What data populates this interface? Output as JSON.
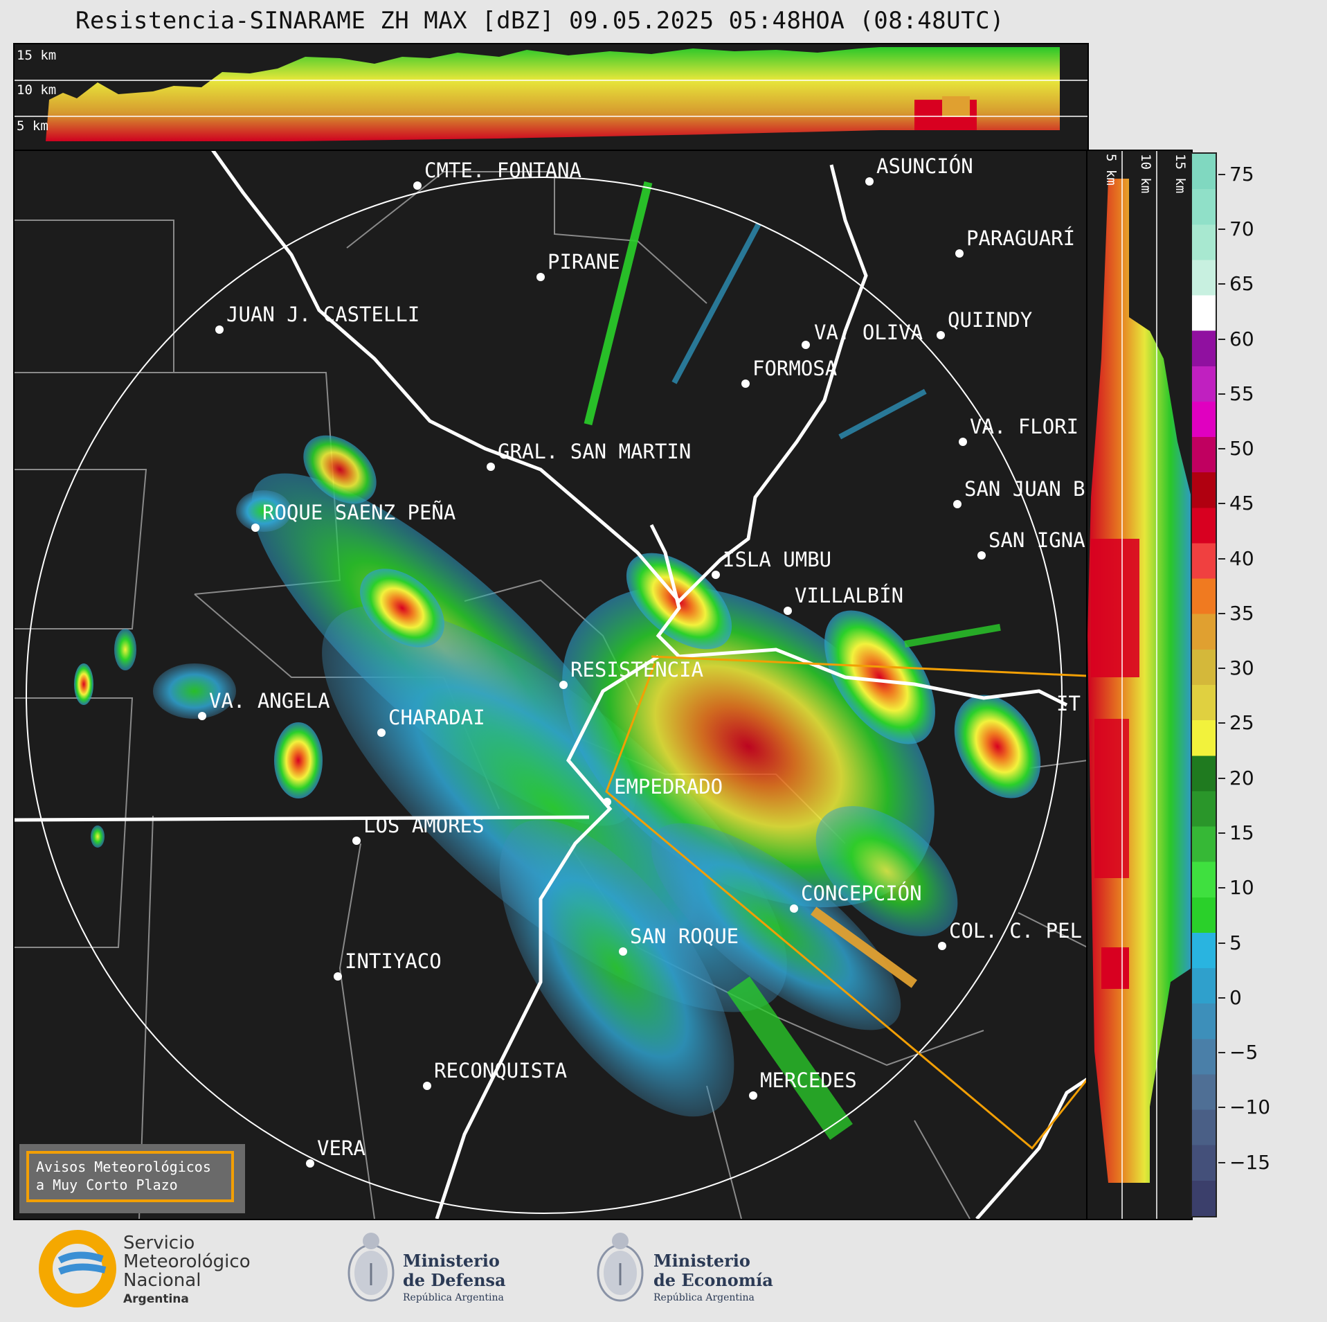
{
  "title": "Resistencia-SINARAME ZH MAX [dBZ] 09.05.2025 05:48HOA (08:48UTC)",
  "height_labels": [
    "15 km",
    "10 km",
    "5 km"
  ],
  "side_height_labels": [
    "5 km",
    "10 km",
    "15 km"
  ],
  "colorbar": {
    "unit": "dBZ",
    "ticks": [
      "75",
      "70",
      "65",
      "60",
      "55",
      "50",
      "45",
      "40",
      "35",
      "30",
      "25",
      "20",
      "15",
      "10",
      "5",
      "0",
      "−5",
      "−10",
      "−15"
    ],
    "colors": [
      "#3b3f6b",
      "#44507a",
      "#4a5f86",
      "#4f6f95",
      "#4a7fa8",
      "#3d8fba",
      "#2fa0cc",
      "#29b4e0",
      "#2ad02a",
      "#3fe03f",
      "#36b836",
      "#2a962a",
      "#1f7a1f",
      "#f2f23c",
      "#e0d040",
      "#d4b83a",
      "#e0a030",
      "#f07a20",
      "#f04040",
      "#d80020",
      "#b00010",
      "#c00060",
      "#e000c0",
      "#c020c0",
      "#9010a0",
      "#ffffff",
      "#c8f0e0",
      "#a8e8d0",
      "#90e0c8",
      "#80d8c0"
    ],
    "range": [
      -20,
      77
    ]
  },
  "cities": [
    {
      "name": "CMTE. FONTANA"
    },
    {
      "name": "ASUNCIÓN"
    },
    {
      "name": "PARAGUARÍ"
    },
    {
      "name": "PIRANE"
    },
    {
      "name": "JUAN J. CASTELLI"
    },
    {
      "name": "VA. OLIVA"
    },
    {
      "name": "QUIINDY"
    },
    {
      "name": "FORMOSA"
    },
    {
      "name": "VA. FLORI"
    },
    {
      "name": "GRAL. SAN MARTIN"
    },
    {
      "name": "SAN JUAN B"
    },
    {
      "name": "ROQUE SAENZ PEÑA"
    },
    {
      "name": "SAN IGNA"
    },
    {
      "name": "ISLA UMBU"
    },
    {
      "name": "VILLALBÍN"
    },
    {
      "name": "RESISTENCIA"
    },
    {
      "name": "VA. ANGELA"
    },
    {
      "name": "CHARADAI"
    },
    {
      "name": "IT"
    },
    {
      "name": "EMPEDRADO"
    },
    {
      "name": "LOS AMORES"
    },
    {
      "name": "CONCEPCIÓN"
    },
    {
      "name": "COL. C. PEL"
    },
    {
      "name": "SAN ROQUE"
    },
    {
      "name": "INTIYACO"
    },
    {
      "name": "RECONQUISTA"
    },
    {
      "name": "MERCEDES"
    },
    {
      "name": "VERA"
    }
  ],
  "warning": {
    "line1": "Avisos Meteorológicos",
    "line2": "a Muy Corto Plazo"
  },
  "footer": {
    "smn": {
      "line1": "Servicio",
      "line2": "Meteorológico",
      "line3": "Nacional",
      "line4": "Argentina"
    },
    "defensa": {
      "line1": "Ministerio",
      "line2": "de Defensa",
      "sub": "República Argentina"
    },
    "economia": {
      "line1": "Ministerio",
      "line2": "de Economía",
      "sub": "República Argentina"
    }
  },
  "colors": {
    "background": "#1c1c1c",
    "page": "#e6e6e6",
    "warning_border": "#f29f05",
    "route": "#f29f05"
  }
}
